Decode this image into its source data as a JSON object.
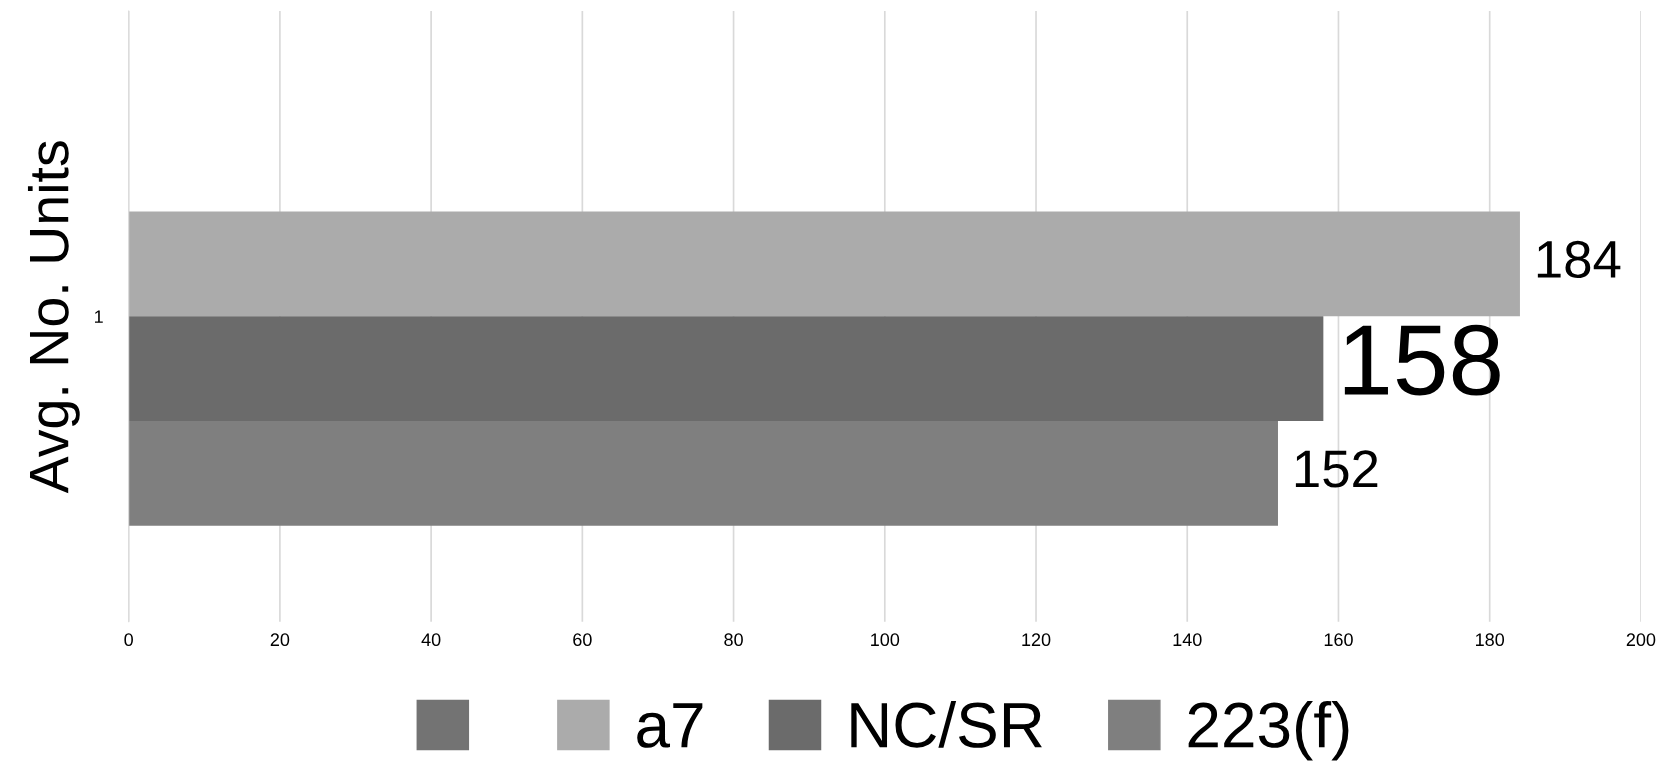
{
  "chart_data": {
    "type": "bar",
    "orientation": "horizontal",
    "ylabel": "Avg. No. Units",
    "categories": [
      "1"
    ],
    "series": [
      {
        "color": "#737373",
        "values": [
          null
        ]
      },
      {
        "name": "a7",
        "color": "#ababab",
        "values": [
          184
        ]
      },
      {
        "name": "NC/SR",
        "color": "#6b6b6b",
        "values": [
          158
        ]
      },
      {
        "name": "223(f)",
        "color": "#7f7f7f",
        "values": [
          152
        ]
      }
    ],
    "xlim": [
      0,
      200
    ],
    "xticks": [
      0,
      20,
      40,
      60,
      80,
      100,
      120,
      140,
      160,
      180,
      200
    ],
    "grid": "x",
    "legend": "bottom",
    "data_labels": true
  }
}
